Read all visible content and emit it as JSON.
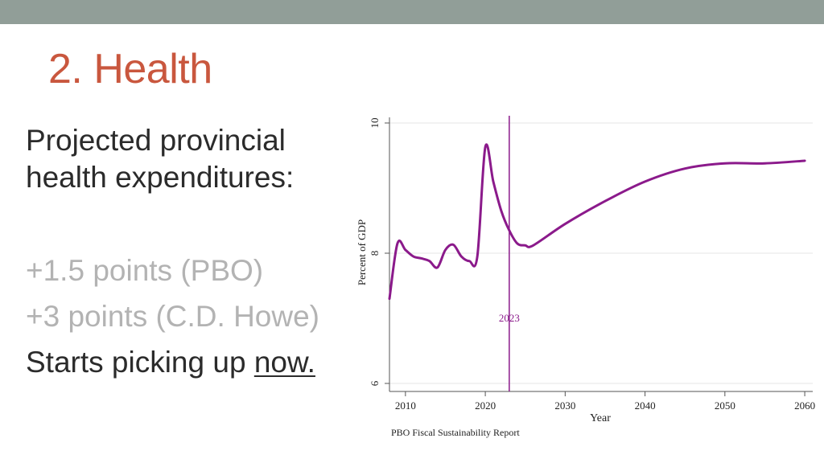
{
  "slide": {
    "title": "2. Health",
    "intro_line1": "Projected provincial",
    "intro_line2": "health expenditures:",
    "point_pbo": "+1.5 points (PBO)",
    "point_cdhowe": "+3 points (C.D. Howe)",
    "last_prefix": "Starts picking up ",
    "last_link": "now."
  },
  "colors": {
    "title": "#c9573e",
    "topbar": "#919e98",
    "series": "#8b1a8b",
    "muted_text": "#b3b3b3"
  },
  "chart_data": {
    "type": "line",
    "title": "",
    "xlabel": "Year",
    "ylabel": "Percent of GDP",
    "source": "PBO Fiscal Sustainability Report",
    "xlim": [
      2008,
      2061
    ],
    "ylim": [
      6,
      10
    ],
    "x_ticks": [
      2010,
      2020,
      2030,
      2040,
      2050,
      2060
    ],
    "y_ticks": [
      6,
      8,
      10
    ],
    "grid": true,
    "reference_line": {
      "x": 2023,
      "label": "2023"
    },
    "series": [
      {
        "x": [
          2008,
          2009,
          2010,
          2011,
          2012,
          2013,
          2014,
          2015,
          2016,
          2017,
          2018,
          2019,
          2020,
          2021,
          2022,
          2023,
          2024,
          2025,
          2026,
          2030,
          2035,
          2040,
          2045,
          2050,
          2055,
          2060
        ],
        "values": [
          7.3,
          8.15,
          8.05,
          7.95,
          7.92,
          7.88,
          7.78,
          8.05,
          8.13,
          7.95,
          7.88,
          7.95,
          9.63,
          9.1,
          8.65,
          8.35,
          8.15,
          8.12,
          8.12,
          8.45,
          8.8,
          9.1,
          9.3,
          9.38,
          9.38,
          9.42
        ]
      }
    ]
  }
}
